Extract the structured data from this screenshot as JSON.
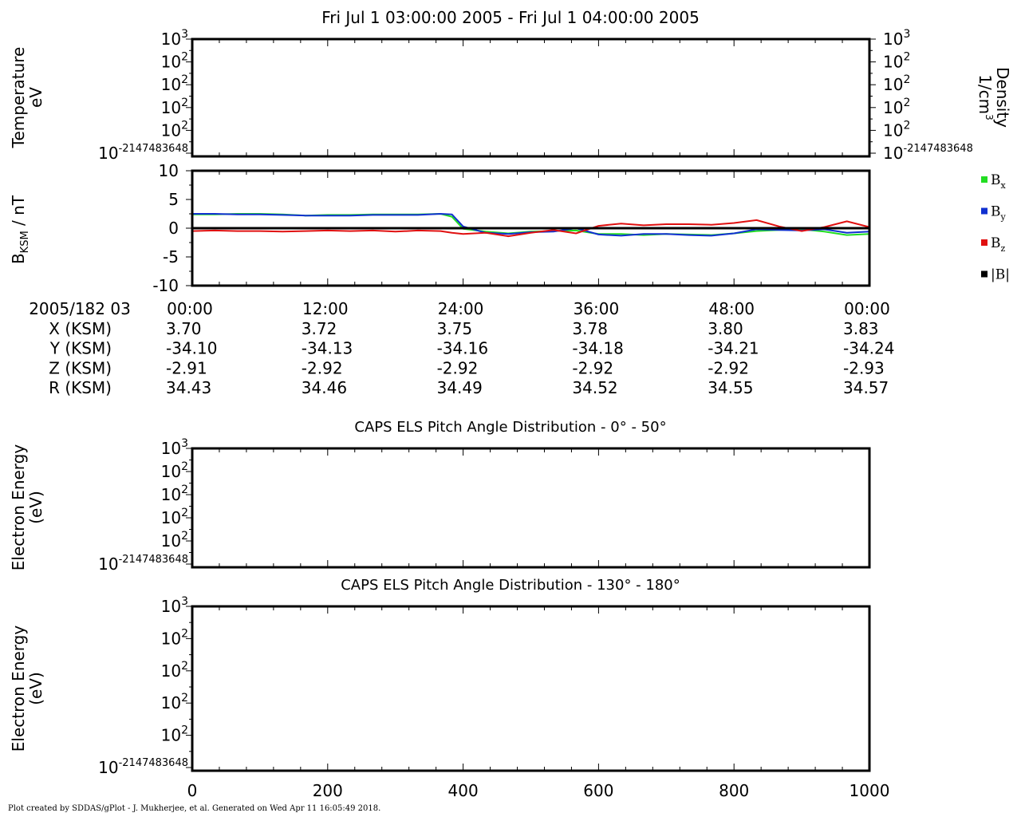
{
  "title": "Fri Jul 1 03:00:00 2005 - Fri Jul 1 04:00:00 2005",
  "footer": "Plot created by SDDAS/gPlot - J. Mukherjee, et al.  Generated on Wed Apr 11 16:05:49 2018.",
  "colors": {
    "bx": "#22dd22",
    "by": "#1030d0",
    "bz": "#e01010",
    "btot": "#000000"
  },
  "log_tick_labels": {
    "bottom_base": "10",
    "bottom_exp": "-2147483648",
    "mid_base": "10",
    "mid_exp": "2",
    "top_base": "10",
    "top_exp": "3"
  },
  "panel_temperature": {
    "ylabel_line1": "Temperature",
    "ylabel_line2": "eV",
    "right_label_line1": "Density",
    "right_label_line2": "1/cm",
    "right_label_sup": "3"
  },
  "panel_bfield": {
    "ylabel_main": "B",
    "ylabel_sub": "KSM",
    "ylabel_rest": " / nT",
    "yticks": [
      "10",
      "5",
      "0",
      "-5",
      "-10"
    ],
    "legend": [
      {
        "key": "bx",
        "base": "B",
        "sub": "x"
      },
      {
        "key": "by",
        "base": "B",
        "sub": "y"
      },
      {
        "key": "bz",
        "base": "B",
        "sub": "z"
      },
      {
        "key": "btot",
        "base": "|B|",
        "sub": ""
      }
    ]
  },
  "ephemeris": {
    "header": "2005/182 03",
    "time_labels": [
      "00:00",
      "12:00",
      "24:00",
      "36:00",
      "48:00",
      "00:00"
    ],
    "rows": [
      {
        "label": "X (KSM)",
        "values": [
          "3.70",
          "3.72",
          "3.75",
          "3.78",
          "3.80",
          "3.83"
        ]
      },
      {
        "label": "Y (KSM)",
        "values": [
          "-34.10",
          "-34.13",
          "-34.16",
          "-34.18",
          "-34.21",
          "-34.24"
        ]
      },
      {
        "label": "Z (KSM)",
        "values": [
          "-2.91",
          "-2.92",
          "-2.92",
          "-2.92",
          "-2.92",
          "-2.93"
        ]
      },
      {
        "label": "R (KSM)",
        "values": [
          "34.43",
          "34.46",
          "34.49",
          "34.52",
          "34.55",
          "34.57"
        ]
      }
    ]
  },
  "panel_pa1": {
    "title": "CAPS ELS Pitch Angle Distribution - 0° - 50°",
    "ylabel_line1": "Electron Energy",
    "ylabel_line2": "(eV)"
  },
  "panel_pa2": {
    "title": "CAPS ELS Pitch Angle Distribution - 130° - 180°",
    "ylabel_line1": "Electron Energy",
    "ylabel_line2": "(eV)",
    "xticks": [
      "0",
      "200",
      "400",
      "600",
      "800",
      "1000"
    ]
  },
  "chart_data": {
    "type": "line",
    "title": "Fri Jul 1 03:00:00 2005 - Fri Jul 1 04:00:00 2005",
    "xlabel": "",
    "ylabel": "BKSM / nT",
    "xlim": [
      0,
      60
    ],
    "ylim": [
      -10,
      10
    ],
    "grid": false,
    "legend_position": "right",
    "x": [
      0,
      2,
      4,
      6,
      8,
      10,
      12,
      14,
      16,
      18,
      20,
      22,
      23,
      24,
      26,
      28,
      30,
      32,
      34,
      36,
      38,
      40,
      42,
      44,
      46,
      48,
      50,
      52,
      54,
      56,
      58,
      60
    ],
    "series": [
      {
        "name": "Bx",
        "color": "#22dd22",
        "values": [
          2.4,
          2.4,
          2.5,
          2.5,
          2.4,
          2.2,
          2.3,
          2.3,
          2.4,
          2.4,
          2.4,
          2.5,
          2.0,
          -0.1,
          -0.6,
          -0.9,
          -0.6,
          -0.5,
          -0.4,
          -1.0,
          -1.0,
          -1.2,
          -1.0,
          -1.1,
          -1.2,
          -0.9,
          -0.5,
          -0.3,
          -0.2,
          -0.6,
          -1.2,
          -1.0
        ]
      },
      {
        "name": "By",
        "color": "#1030d0",
        "values": [
          2.5,
          2.5,
          2.4,
          2.4,
          2.3,
          2.2,
          2.2,
          2.2,
          2.3,
          2.3,
          2.3,
          2.5,
          2.4,
          0.3,
          -0.8,
          -1.0,
          -0.7,
          -0.6,
          0.0,
          -1.1,
          -1.3,
          -1.0,
          -1.0,
          -1.2,
          -1.3,
          -0.9,
          -0.2,
          -0.3,
          -0.4,
          -0.2,
          -0.8,
          -0.6
        ]
      },
      {
        "name": "Bz",
        "color": "#e01010",
        "values": [
          -0.5,
          -0.4,
          -0.5,
          -0.5,
          -0.6,
          -0.5,
          -0.4,
          -0.5,
          -0.4,
          -0.6,
          -0.4,
          -0.5,
          -0.8,
          -1.0,
          -0.8,
          -1.4,
          -0.8,
          -0.3,
          -0.9,
          0.4,
          0.8,
          0.5,
          0.7,
          0.7,
          0.6,
          0.9,
          1.4,
          0.3,
          -0.5,
          0.2,
          1.2,
          0.2
        ]
      },
      {
        "name": "|B|",
        "color": "#000000",
        "values": [
          0,
          0,
          0,
          0,
          0,
          0,
          0,
          0,
          0,
          0,
          0,
          0,
          0,
          0,
          0,
          0,
          0,
          0,
          0,
          0,
          0,
          0,
          0,
          0,
          0,
          0,
          0,
          0,
          0,
          0,
          0,
          0
        ]
      }
    ]
  }
}
